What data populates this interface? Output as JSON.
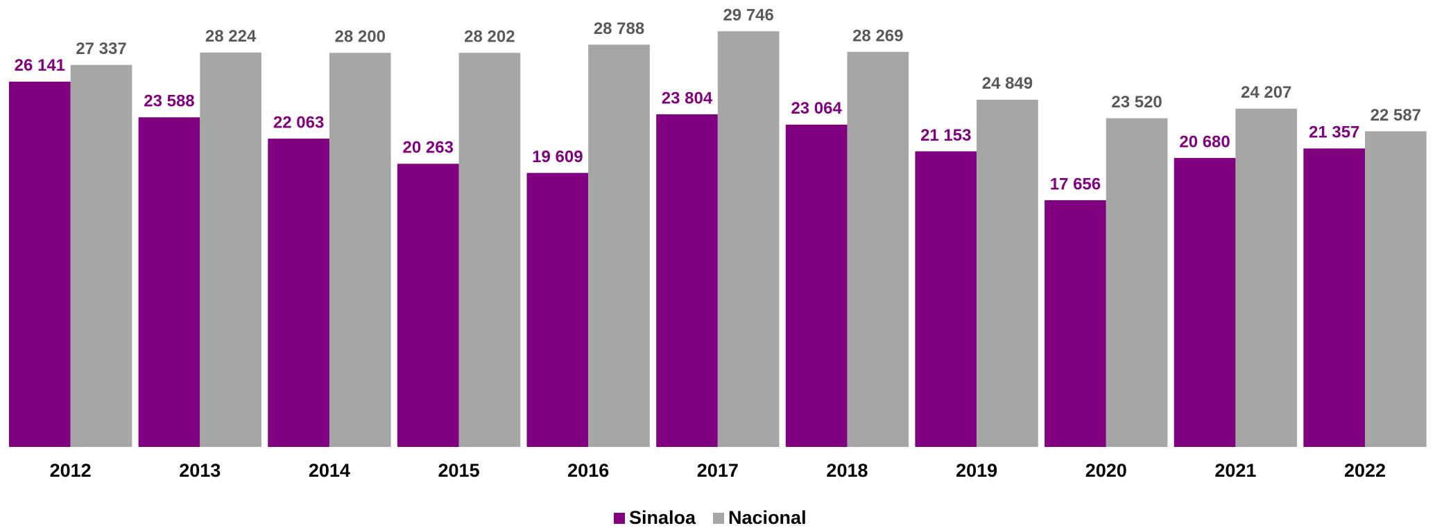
{
  "chart_data": {
    "type": "bar",
    "categories": [
      "2012",
      "2013",
      "2014",
      "2015",
      "2016",
      "2017",
      "2018",
      "2019",
      "2020",
      "2021",
      "2022"
    ],
    "series": [
      {
        "name": "Sinaloa",
        "color": "#800080",
        "values": [
          26141,
          23588,
          22063,
          20263,
          19609,
          23804,
          23064,
          21153,
          17656,
          20680,
          21357
        ],
        "value_labels": [
          "26 141",
          "23 588",
          "22 063",
          "20 263",
          "19 609",
          "23 804",
          "23 064",
          "21 153",
          "17 656",
          "20 680",
          "21 357"
        ]
      },
      {
        "name": "Nacional",
        "color": "#a6a6a6",
        "values": [
          27337,
          28224,
          28200,
          28202,
          28788,
          29746,
          28269,
          24849,
          23520,
          24207,
          22587
        ],
        "value_labels": [
          "27 337",
          "28 224",
          "28 200",
          "28 202",
          "28 788",
          "29 746",
          "28 269",
          "24 849",
          "23 520",
          "24 207",
          "22 587"
        ]
      }
    ],
    "ylim": [
      0,
      30000
    ],
    "legend": "bottom"
  }
}
